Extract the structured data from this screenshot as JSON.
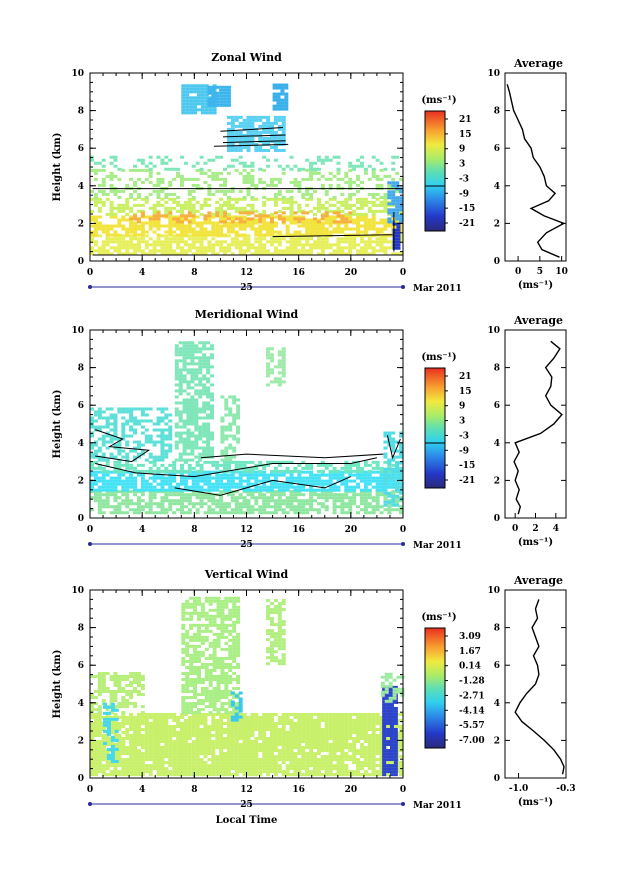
{
  "panels": [
    {
      "key": "zonal",
      "title": "Zonal Wind",
      "avg_title": "Average",
      "colorbar_unit": "(ms⁻¹)",
      "colorbar_ticks": [
        "21",
        "15",
        "9",
        "3",
        "-3",
        "-9",
        "-15",
        "-21"
      ],
      "avg_xticks": [
        "0",
        "5",
        "10"
      ],
      "avg_unit": "(ms⁻¹)",
      "show_xlabel": false
    },
    {
      "key": "meridional",
      "title": "Meridional Wind",
      "avg_title": "Average",
      "colorbar_unit": "(ms⁻¹)",
      "colorbar_ticks": [
        "21",
        "15",
        "9",
        "3",
        "-3",
        "-9",
        "-15",
        "-21"
      ],
      "avg_xticks": [
        "0",
        "2",
        "4"
      ],
      "avg_unit": "(ms⁻¹)",
      "show_xlabel": false
    },
    {
      "key": "vertical",
      "title": "Vertical Wind",
      "avg_title": "Average",
      "colorbar_unit": "(ms⁻¹)",
      "colorbar_ticks": [
        "3.09",
        "1.67",
        "0.14",
        "-1.28",
        "-2.71",
        "-4.14",
        "-5.57",
        "-7.00"
      ],
      "avg_xticks": [
        "-1.0",
        "-0.3"
      ],
      "avg_unit": "(ms⁻¹)",
      "show_xlabel": true
    }
  ],
  "common": {
    "ylabel": "Height (km)",
    "yticks": [
      "0",
      "2",
      "4",
      "6",
      "8",
      "10"
    ],
    "xticks": [
      "0",
      "4",
      "8",
      "12",
      "16",
      "20",
      "0"
    ],
    "date_day": "25",
    "date_month": "Mar 2011",
    "xlabel": "Local Time"
  },
  "chart_data": [
    {
      "type": "heatmap",
      "title": "Zonal Wind",
      "xlabel": "",
      "ylabel": "Height (km)",
      "x_unit": "Local Time (hours), 25 Mar 2011",
      "xlim": [
        0,
        24
      ],
      "ylim": [
        0,
        10
      ],
      "color_scale": {
        "min": -21,
        "max": 21,
        "unit": "ms-1"
      },
      "average_profile": {
        "title": "Average",
        "xlim": [
          -3,
          11
        ],
        "heights": [
          0.2,
          0.6,
          1.0,
          1.5,
          2.0,
          2.4,
          2.8,
          3.2,
          3.6,
          4.0,
          4.5,
          5.0,
          5.5,
          6.0,
          6.5,
          7.0,
          7.5,
          8.0,
          8.5,
          9.0,
          9.4
        ],
        "values": [
          9.5,
          5.5,
          4.5,
          6.5,
          10.5,
          6.0,
          3.0,
          7.0,
          8.5,
          6.5,
          6.0,
          5.0,
          3.5,
          3.0,
          1.5,
          1.0,
          0.0,
          -1.0,
          -1.5,
          -2.0,
          -2.5
        ]
      }
    },
    {
      "type": "heatmap",
      "title": "Meridional Wind",
      "xlabel": "",
      "ylabel": "Height (km)",
      "x_unit": "Local Time (hours), 25 Mar 2011",
      "xlim": [
        0,
        24
      ],
      "ylim": [
        0,
        10
      ],
      "color_scale": {
        "min": -21,
        "max": 21,
        "unit": "ms-1"
      },
      "average_profile": {
        "title": "Average",
        "xlim": [
          -1,
          5
        ],
        "heights": [
          0.2,
          0.6,
          1.0,
          1.5,
          2.0,
          2.5,
          3.0,
          3.5,
          4.0,
          4.5,
          5.0,
          5.5,
          6.0,
          6.5,
          7.0,
          7.5,
          8.0,
          8.5,
          9.0,
          9.4
        ],
        "values": [
          0.3,
          0.5,
          0.1,
          0.4,
          0.0,
          0.3,
          -0.1,
          0.4,
          0.0,
          2.5,
          3.8,
          4.6,
          3.5,
          3.0,
          3.5,
          3.6,
          3.0,
          3.8,
          4.4,
          3.5
        ]
      }
    },
    {
      "type": "heatmap",
      "title": "Vertical Wind",
      "xlabel": "Local Time",
      "ylabel": "Height (km)",
      "x_unit": "Local Time (hours), 25 Mar 2011",
      "xlim": [
        0,
        24
      ],
      "ylim": [
        0,
        10
      ],
      "color_scale": {
        "min": -7.0,
        "max": 3.09,
        "unit": "ms-1"
      },
      "average_profile": {
        "title": "Average",
        "xlim": [
          -1.2,
          -0.3
        ],
        "heights": [
          0.2,
          0.6,
          1.0,
          1.5,
          2.0,
          2.5,
          3.0,
          3.5,
          4.0,
          4.5,
          5.0,
          5.5,
          6.0,
          6.5,
          7.0,
          7.5,
          8.0,
          8.5,
          9.0,
          9.5
        ],
        "values": [
          -0.35,
          -0.33,
          -0.38,
          -0.48,
          -0.62,
          -0.78,
          -0.95,
          -1.05,
          -0.98,
          -0.88,
          -0.75,
          -0.7,
          -0.72,
          -0.78,
          -0.7,
          -0.75,
          -0.8,
          -0.72,
          -0.75,
          -0.7
        ]
      }
    }
  ]
}
